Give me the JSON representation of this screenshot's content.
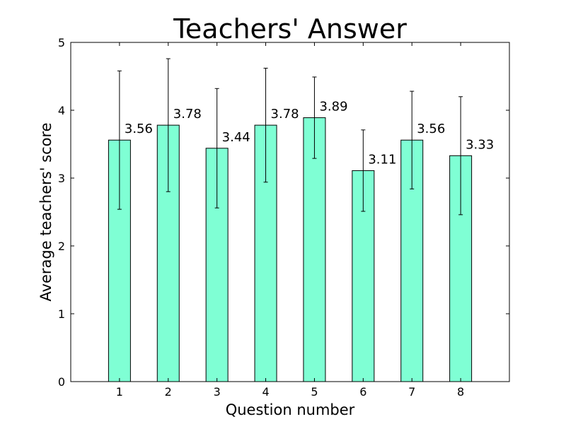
{
  "chart_data": {
    "type": "bar",
    "title": "Teachers' Answer",
    "xlabel": "Question number",
    "ylabel": "Average teachers' score",
    "categories": [
      "1",
      "2",
      "3",
      "4",
      "5",
      "6",
      "7",
      "8"
    ],
    "values": [
      3.56,
      3.78,
      3.44,
      3.78,
      3.89,
      3.11,
      3.56,
      3.33
    ],
    "value_labels": [
      "3.56",
      "3.78",
      "3.44",
      "3.78",
      "3.89",
      "3.11",
      "3.56",
      "3.33"
    ],
    "errors": [
      1.02,
      0.98,
      0.88,
      0.84,
      0.6,
      0.6,
      0.72,
      0.87
    ],
    "ylim": [
      0,
      5
    ],
    "yticks": [
      "0",
      "1",
      "2",
      "3",
      "4",
      "5"
    ],
    "xlim": [
      0,
      9
    ],
    "grid": false,
    "colors": {
      "bar_fill": "#7fffd4",
      "bar_stroke": "#000000",
      "error_bar": "#000000",
      "axes": "#000000"
    }
  }
}
